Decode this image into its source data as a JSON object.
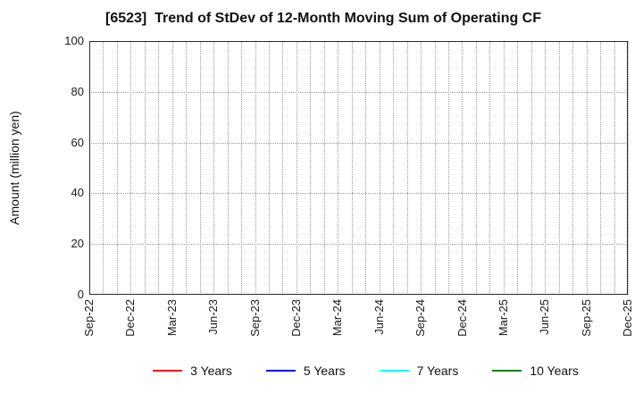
{
  "colors": {
    "background": "#ffffff",
    "frame": "#2a2a2a",
    "gridline": "#9a9a9a",
    "text": "#111111"
  },
  "chart_data": {
    "type": "line",
    "title": "[6523]  Trend of StDev of 12-Month Moving Sum of Operating CF",
    "xlabel": "",
    "ylabel": "Amount (million yen)",
    "ylim": [
      0,
      100
    ],
    "yticks": [
      0,
      20,
      40,
      60,
      80,
      100
    ],
    "x_tick_labels": [
      "Sep-22",
      "Dec-22",
      "Mar-23",
      "Jun-23",
      "Sep-23",
      "Dec-23",
      "Mar-24",
      "Jun-24",
      "Sep-24",
      "Dec-24",
      "Mar-25",
      "Jun-25",
      "Sep-25",
      "Dec-25"
    ],
    "x_months_between_labeled_ticks": 3,
    "x_total_month_intervals": 39,
    "x_tick_label_rotation_deg": 90,
    "grid": true,
    "grid_style": "dotted",
    "legend_position": "bottom",
    "series": [
      {
        "name": "3 Years",
        "color": "#ff0000",
        "values": []
      },
      {
        "name": "5 Years",
        "color": "#0000ff",
        "values": []
      },
      {
        "name": "7 Years",
        "color": "#00ffff",
        "values": []
      },
      {
        "name": "10 Years",
        "color": "#008000",
        "values": []
      }
    ]
  }
}
